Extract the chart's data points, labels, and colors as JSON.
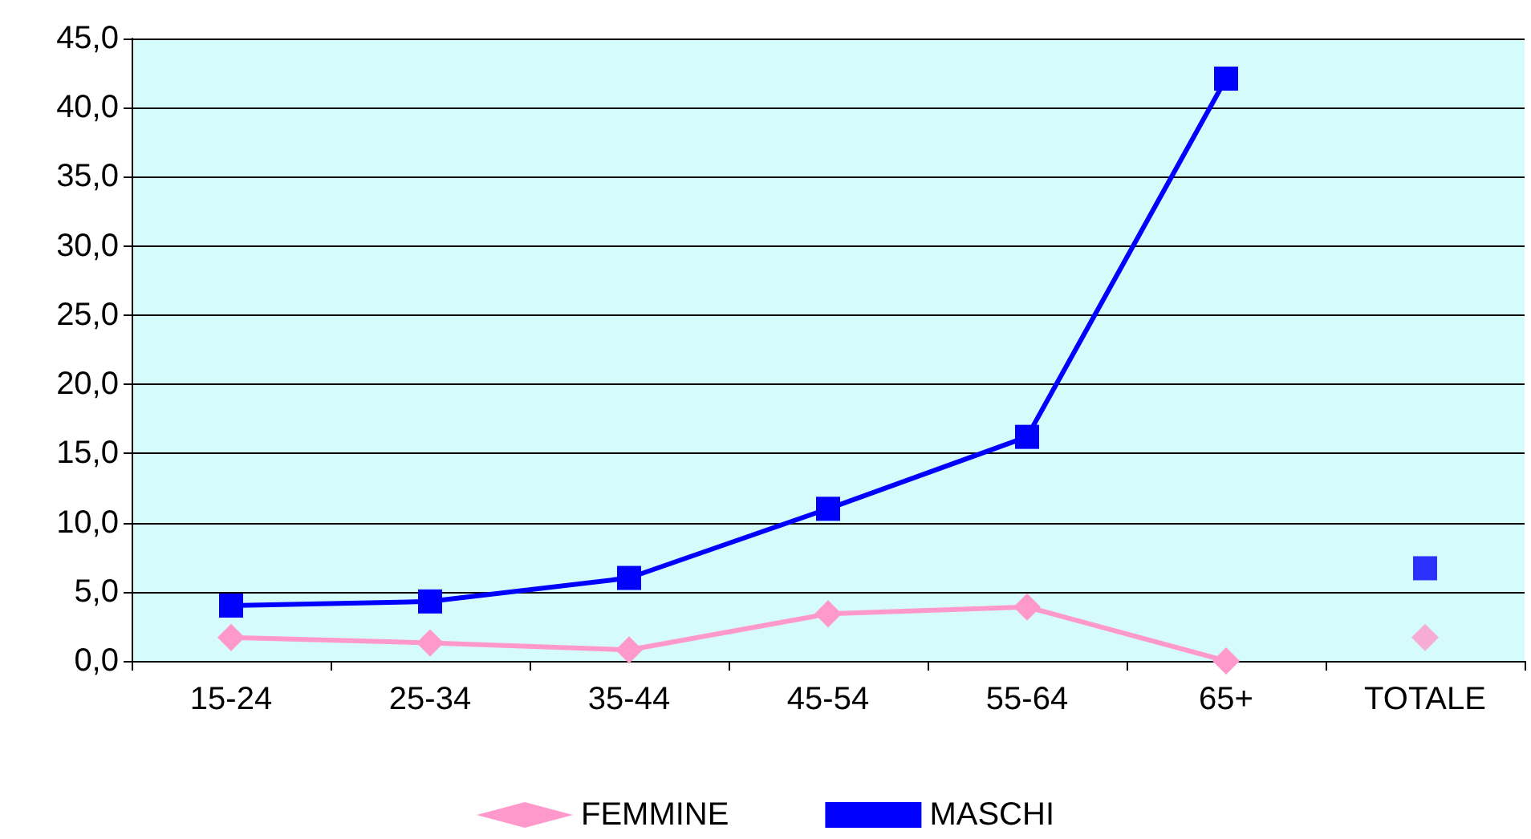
{
  "chart_data": {
    "type": "line",
    "categories": [
      "15-24",
      "25-34",
      "35-44",
      "45-54",
      "55-64",
      "65+",
      "TOTALE"
    ],
    "series": [
      {
        "name": "FEMMINE",
        "color": "#ff99cc",
        "marker": "diamond",
        "values": [
          1.7,
          1.3,
          0.8,
          3.4,
          3.9,
          0.0,
          null
        ]
      },
      {
        "name": "MASCHI",
        "color": "#0000ff",
        "marker": "square",
        "values": [
          4.0,
          4.3,
          6.0,
          11.0,
          16.2,
          42.1,
          null
        ]
      },
      {
        "type": "scatter",
        "color": "#ff99cc",
        "marker": "diamond",
        "x": [
          "TOTALE"
        ],
        "values": [
          1.7
        ]
      },
      {
        "type": "scatter",
        "color": "#0000ff",
        "marker": "square",
        "x": [
          "TOTALE"
        ],
        "values": [
          6.7
        ]
      }
    ],
    "ylim": [
      0,
      45
    ],
    "yticks": [
      {
        "value": 0,
        "label": "0,0"
      },
      {
        "value": 5,
        "label": "5,0"
      },
      {
        "value": 10,
        "label": "10,0"
      },
      {
        "value": 15,
        "label": "15,0"
      },
      {
        "value": 20,
        "label": "20,0"
      },
      {
        "value": 25,
        "label": "25,0"
      },
      {
        "value": 30,
        "label": "30,0"
      },
      {
        "value": 35,
        "label": "35,0"
      },
      {
        "value": 40,
        "label": "40,0"
      },
      {
        "value": 45,
        "label": "45,0"
      }
    ],
    "grid": "y",
    "legend": "bottom"
  }
}
